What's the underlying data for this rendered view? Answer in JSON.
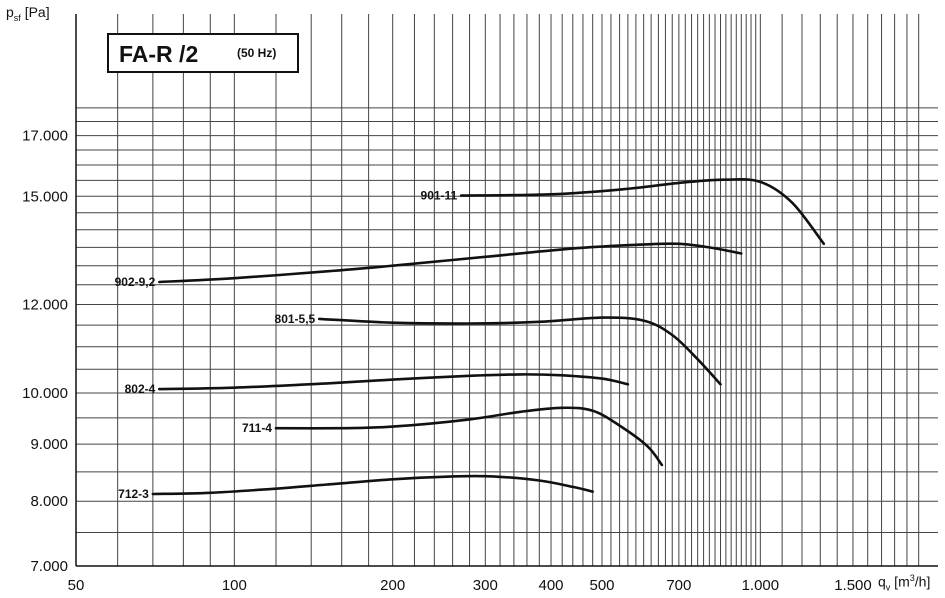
{
  "axis_label_y": {
    "symbol": "p",
    "sub": "sf",
    "unit": " [Pa]"
  },
  "axis_label_x": {
    "symbol": "q",
    "sub": "v",
    "unit_pre": " [m",
    "unit_sup": "3",
    "unit_post": "/h]"
  },
  "title_box": {
    "main": "FA-R /2",
    "sub": "(50 Hz)"
  },
  "chart_data": {
    "type": "line",
    "title": "FA-R /2 (50 Hz)",
    "xlabel": "qv [m3/h]",
    "ylabel": "psf [Pa]",
    "x_scale": "log",
    "y_scale": "log",
    "xlim": [
      50,
      2000
    ],
    "ylim": [
      7000,
      18000
    ],
    "grid": true,
    "x_ticks": [
      {
        "value": 50,
        "label": "50"
      },
      {
        "value": 100,
        "label": "100"
      },
      {
        "value": 200,
        "label": "200"
      },
      {
        "value": 300,
        "label": "300"
      },
      {
        "value": 400,
        "label": "400"
      },
      {
        "value": 500,
        "label": "500"
      },
      {
        "value": 700,
        "label": "700"
      },
      {
        "value": 1000,
        "label": "1.000"
      },
      {
        "value": 1500,
        "label": "1.500"
      }
    ],
    "y_ticks": [
      {
        "value": 7000,
        "label": "7.000"
      },
      {
        "value": 8000,
        "label": "8.000"
      },
      {
        "value": 9000,
        "label": "9.000"
      },
      {
        "value": 10000,
        "label": "10.000"
      },
      {
        "value": 12000,
        "label": "12.000"
      },
      {
        "value": 15000,
        "label": "15.000"
      },
      {
        "value": 17000,
        "label": "17.000"
      }
    ],
    "series": [
      {
        "name": "901-11",
        "x": [
          270,
          400,
          550,
          700,
          850,
          1000,
          1150,
          1320
        ],
        "y": [
          15020,
          15060,
          15220,
          15420,
          15520,
          15450,
          14800,
          13600
        ]
      },
      {
        "name": "902-9,2",
        "x": [
          72,
          100,
          150,
          200,
          300,
          450,
          600,
          700,
          800,
          920
        ],
        "y": [
          12570,
          12670,
          12850,
          13000,
          13240,
          13480,
          13580,
          13600,
          13500,
          13330
        ]
      },
      {
        "name": "801-5,5",
        "x": [
          145,
          200,
          280,
          380,
          500,
          600,
          680,
          760,
          840
        ],
        "y": [
          11650,
          11560,
          11540,
          11580,
          11680,
          11610,
          11270,
          10720,
          10180
        ]
      },
      {
        "name": "802-4",
        "x": [
          72,
          100,
          150,
          200,
          280,
          350,
          420,
          500,
          560
        ],
        "y": [
          10080,
          10110,
          10200,
          10280,
          10360,
          10390,
          10370,
          10300,
          10180
        ]
      },
      {
        "name": "711-4",
        "x": [
          120,
          160,
          200,
          280,
          350,
          420,
          480,
          540,
          610,
          650
        ],
        "y": [
          9300,
          9300,
          9330,
          9470,
          9620,
          9700,
          9640,
          9350,
          8960,
          8620
        ]
      },
      {
        "name": "712-3",
        "x": [
          70,
          90,
          120,
          150,
          200,
          260,
          310,
          380,
          440,
          480
        ],
        "y": [
          8120,
          8140,
          8210,
          8280,
          8370,
          8420,
          8420,
          8350,
          8240,
          8160
        ]
      }
    ]
  }
}
